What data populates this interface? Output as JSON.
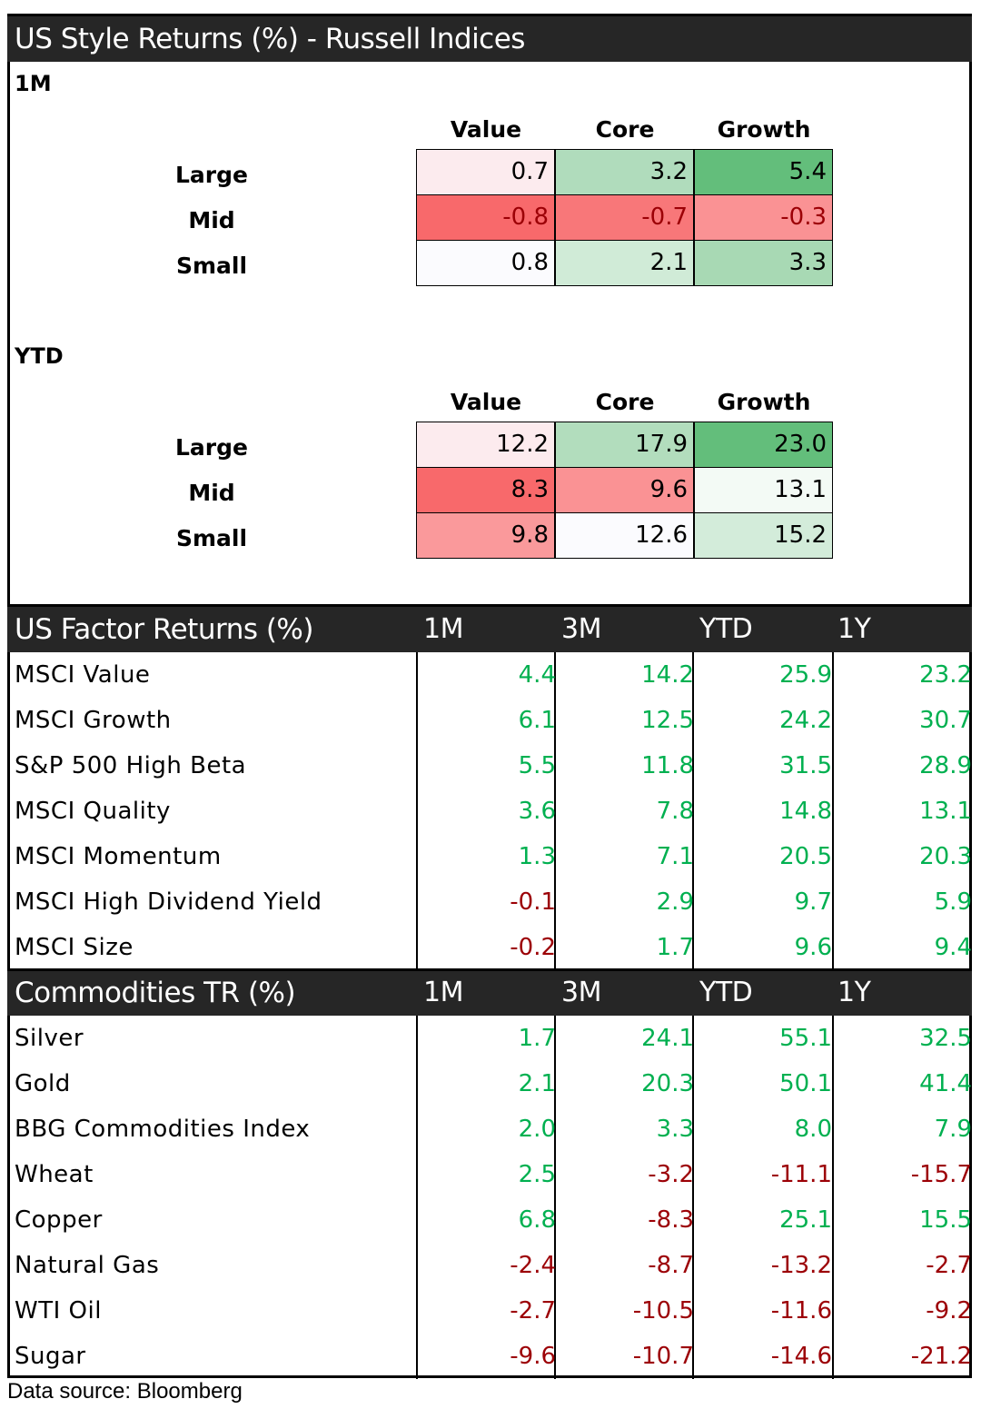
{
  "style_section": {
    "title": "US Style Returns (%) - Russell Indices",
    "columns": [
      "Value",
      "Core",
      "Growth"
    ],
    "rows": [
      "Large",
      "Mid",
      "Small"
    ],
    "blocks": [
      {
        "label": "1M",
        "values": [
          [
            "0.7",
            "3.2",
            "5.4"
          ],
          [
            "-0.8",
            "-0.7",
            "-0.3"
          ],
          [
            "0.8",
            "2.1",
            "3.3"
          ]
        ],
        "colors": [
          [
            "#fcebee",
            "#b0dcbc",
            "#63be7b"
          ],
          [
            "#f8696b",
            "#f87779",
            "#fa9294"
          ],
          [
            "#fbfbfe",
            "#d0ebd7",
            "#a8d9b4"
          ]
        ]
      },
      {
        "label": "YTD",
        "values": [
          [
            "12.2",
            "17.9",
            "23.0"
          ],
          [
            "8.3",
            "9.6",
            "13.1"
          ],
          [
            "9.8",
            "12.6",
            "15.2"
          ]
        ],
        "colors": [
          [
            "#fcebee",
            "#b2ddbd",
            "#63be7b"
          ],
          [
            "#f8696b",
            "#fa9294",
            "#f3faf5"
          ],
          [
            "#fa999b",
            "#fbfbfe",
            "#d3ecda"
          ]
        ]
      }
    ]
  },
  "factor_section": {
    "title": "US Factor Returns (%)",
    "columns": [
      "1M",
      "3M",
      "YTD",
      "1Y"
    ],
    "rows": [
      {
        "name": "MSCI Value",
        "values": [
          "4.4",
          "14.2",
          "25.9",
          "23.2"
        ]
      },
      {
        "name": "MSCI Growth",
        "values": [
          "6.1",
          "12.5",
          "24.2",
          "30.7"
        ]
      },
      {
        "name": "S&P 500 High Beta",
        "values": [
          "5.5",
          "11.8",
          "31.5",
          "28.9"
        ]
      },
      {
        "name": "MSCI Quality",
        "values": [
          "3.6",
          "7.8",
          "14.8",
          "13.1"
        ]
      },
      {
        "name": "MSCI Momentum",
        "values": [
          "1.3",
          "7.1",
          "20.5",
          "20.3"
        ]
      },
      {
        "name": "MSCI High Dividend Yield",
        "values": [
          "-0.1",
          "2.9",
          "9.7",
          "5.9"
        ]
      },
      {
        "name": "MSCI Size",
        "values": [
          "-0.2",
          "1.7",
          "9.6",
          "9.4"
        ]
      }
    ]
  },
  "commodities_section": {
    "title": "Commodities TR (%)",
    "columns": [
      "1M",
      "3M",
      "YTD",
      "1Y"
    ],
    "rows": [
      {
        "name": "Silver",
        "values": [
          "1.7",
          "24.1",
          "55.1",
          "32.5"
        ]
      },
      {
        "name": "Gold",
        "values": [
          "2.1",
          "20.3",
          "50.1",
          "41.4"
        ]
      },
      {
        "name": "BBG Commodities Index",
        "values": [
          "2.0",
          "3.3",
          "8.0",
          "7.9"
        ]
      },
      {
        "name": "Wheat",
        "values": [
          "2.5",
          "-3.2",
          "-11.1",
          "-15.7"
        ]
      },
      {
        "name": "Copper",
        "values": [
          "6.8",
          "-8.3",
          "25.1",
          "15.5"
        ]
      },
      {
        "name": "Natural Gas",
        "values": [
          "-2.4",
          "-8.7",
          "-13.2",
          "-2.7"
        ]
      },
      {
        "name": "WTI Oil",
        "values": [
          "-2.7",
          "-10.5",
          "-11.6",
          "-9.2"
        ]
      },
      {
        "name": "Sugar",
        "values": [
          "-9.6",
          "-10.7",
          "-14.6",
          "-21.2"
        ]
      }
    ]
  },
  "colors": {
    "positive": "#00b050",
    "negative": "#9c0006",
    "header_bg": "#262626"
  },
  "footer": "Data source: Bloomberg"
}
